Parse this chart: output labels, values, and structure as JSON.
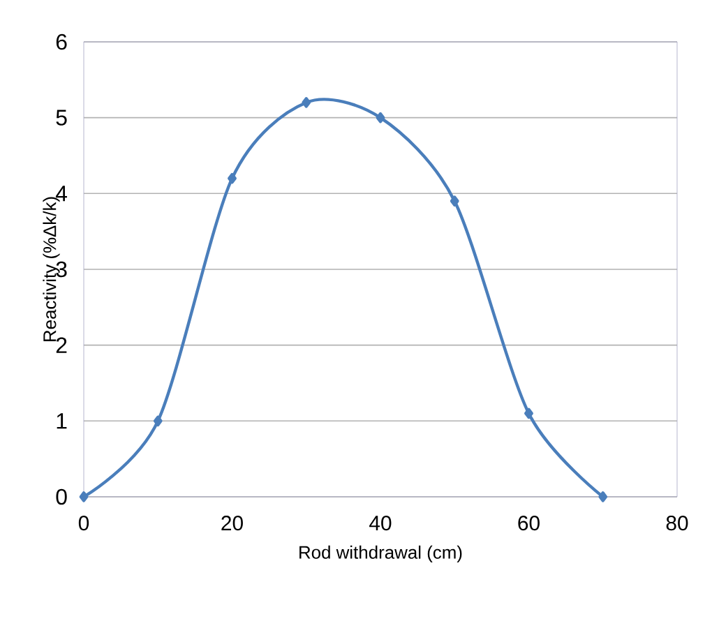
{
  "chart_data": {
    "type": "line",
    "xlabel": "Rod withdrawal (cm)",
    "ylabel": "Reactivity (%Δk/k)",
    "x": [
      0,
      10,
      20,
      30,
      40,
      50,
      60,
      70
    ],
    "series": [
      {
        "color": "#4a7ebb",
        "values": [
          0,
          1,
          4.2,
          5.2,
          5.0,
          3.9,
          1.1,
          0
        ]
      }
    ],
    "xlim": [
      0,
      80
    ],
    "xticks": [
      0,
      20,
      40,
      60,
      80
    ],
    "ylim": [
      0,
      6
    ],
    "yticks": [
      0,
      1,
      2,
      3,
      4,
      5,
      6
    ],
    "grid": "y",
    "marker": "diamond",
    "line_style": "solid"
  }
}
